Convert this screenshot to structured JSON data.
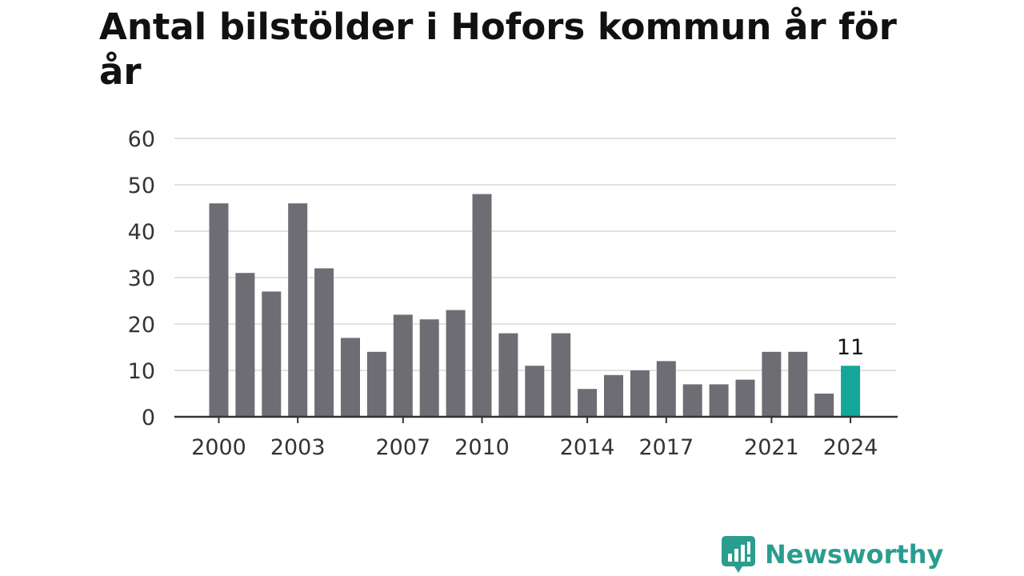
{
  "chart_data": {
    "type": "bar",
    "title": "Antal bilstölder i Hofors kommun år för år",
    "xlabel": "",
    "ylabel": "",
    "categories": [
      "2000",
      "2001",
      "2002",
      "2003",
      "2004",
      "2005",
      "2006",
      "2007",
      "2008",
      "2009",
      "2010",
      "2011",
      "2012",
      "2013",
      "2014",
      "2015",
      "2016",
      "2017",
      "2018",
      "2019",
      "2020",
      "2021",
      "2022",
      "2023",
      "2024"
    ],
    "values": [
      46,
      31,
      27,
      46,
      32,
      17,
      14,
      22,
      21,
      23,
      48,
      18,
      11,
      18,
      6,
      9,
      10,
      12,
      7,
      7,
      8,
      14,
      14,
      5,
      11
    ],
    "x_tick_labels": [
      "2000",
      "2003",
      "2007",
      "2010",
      "2014",
      "2017",
      "2021",
      "2024"
    ],
    "y_ticks": [
      0,
      10,
      20,
      30,
      40,
      50,
      60
    ],
    "ylim": [
      0,
      60
    ],
    "grid": true,
    "bar_color": "#6e6d73",
    "highlight_color": "#14a69a",
    "highlight_category": "2024",
    "highlight_label": "11"
  },
  "brand": {
    "name": "Newsworthy",
    "icon": "newsworthy-logo-icon",
    "color": "#2a9d8f"
  }
}
